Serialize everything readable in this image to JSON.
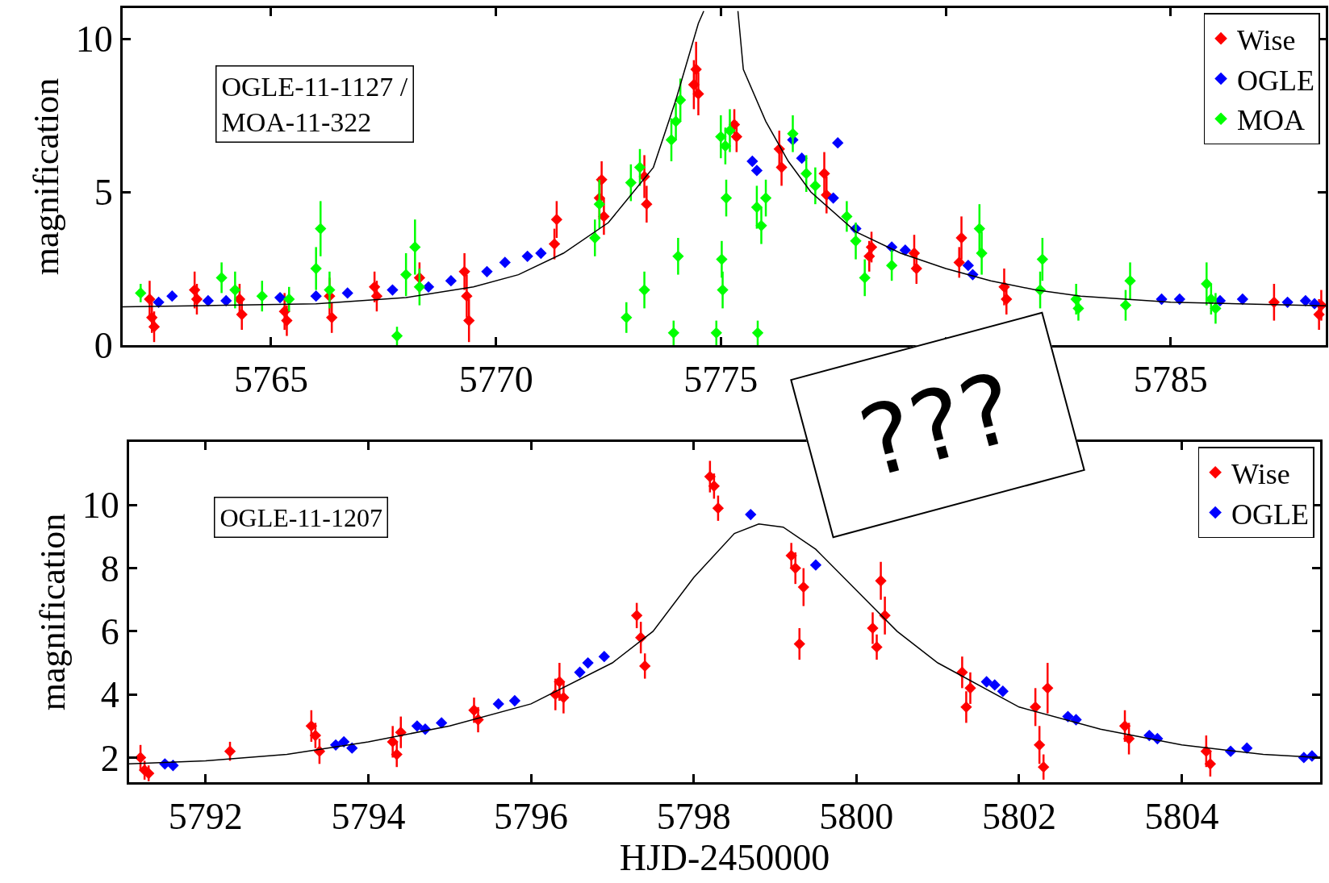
{
  "chart_data": [
    {
      "type": "scatter",
      "ylabel": "magnification",
      "xlim": [
        5761.7,
        5788.45
      ],
      "ylim": [
        0,
        11
      ],
      "xticks": [
        5765,
        5770,
        5775,
        {
          "value": 5780,
          "label": null
        },
        5785
      ],
      "yticks": [
        0,
        5,
        10
      ],
      "marker": "diamond",
      "legend": "top right",
      "grid": false,
      "annotations": [
        "OGLE-11-1127 /\nMOA-11-322",
        "???"
      ],
      "series": [
        {
          "name": "Wise",
          "color": "#ff0000",
          "x": [
            5762.3,
            5762.35,
            5762.4,
            5763.3,
            5763.35,
            5764.3,
            5764.35,
            5765.3,
            5765.35,
            5766.3,
            5766.35,
            5767.3,
            5767.35,
            5768.3,
            5769.3,
            5769.35,
            5769.4,
            5771.3,
            5771.35,
            5772.3,
            5772.35,
            5772.4,
            5773.3,
            5773.35,
            5774.4,
            5774.45,
            5774.5,
            5775.3,
            5775.35,
            5776.3,
            5776.35,
            5777.3,
            5777.35,
            5778.3,
            5778.35,
            5779.3,
            5779.35,
            5780.3,
            5780.35,
            5781.3,
            5781.35,
            5787.3,
            5788.3,
            5788.35
          ],
          "values": [
            1.5,
            0.9,
            0.6,
            1.8,
            1.5,
            1.5,
            1.0,
            1.1,
            0.8,
            1.6,
            0.9,
            1.9,
            1.6,
            2.2,
            2.4,
            1.6,
            0.8,
            3.3,
            4.1,
            4.8,
            5.4,
            4.2,
            5.5,
            4.6,
            8.5,
            9.0,
            8.2,
            7.2,
            6.8,
            6.4,
            5.8,
            5.6,
            4.9,
            2.9,
            3.2,
            3.0,
            2.5,
            2.7,
            3.5,
            1.9,
            1.5,
            1.4,
            1.0,
            1.3
          ],
          "errors": [
            0.6,
            0.5,
            0.5,
            0.6,
            0.5,
            0.5,
            0.5,
            0.6,
            0.5,
            0.6,
            0.5,
            0.5,
            0.5,
            0.5,
            0.6,
            0.7,
            0.7,
            0.5,
            0.6,
            0.7,
            0.6,
            0.6,
            0.7,
            0.6,
            0.8,
            0.9,
            0.7,
            0.5,
            0.5,
            0.6,
            0.6,
            0.7,
            0.6,
            0.5,
            0.5,
            0.6,
            0.5,
            0.5,
            0.7,
            0.6,
            0.5,
            0.6,
            0.5,
            0.5
          ]
        },
        {
          "name": "OGLE",
          "color": "#0000ff",
          "x": [
            5762.5,
            5762.8,
            5763.6,
            5764.0,
            5765.2,
            5766.0,
            5766.7,
            5767.7,
            5768.5,
            5769.0,
            5769.8,
            5770.2,
            5770.7,
            5771.0,
            5775.7,
            5775.8,
            5776.6,
            5776.8,
            5777.6,
            5777.5,
            5778.0,
            5778.8,
            5779.1,
            5780.5,
            5780.6,
            5784.8,
            5785.2,
            5786.1,
            5786.6,
            5787.6,
            5788.0,
            5788.2
          ],
          "values": [
            1.4,
            1.6,
            1.45,
            1.45,
            1.55,
            1.6,
            1.7,
            1.8,
            1.9,
            2.1,
            2.4,
            2.7,
            2.9,
            3.0,
            6.0,
            5.7,
            6.7,
            6.1,
            6.6,
            4.8,
            3.8,
            3.2,
            3.1,
            2.6,
            2.3,
            1.5,
            1.5,
            1.45,
            1.5,
            1.4,
            1.45,
            1.35
          ]
        },
        {
          "name": "MOA",
          "color": "#00ff00",
          "x": [
            5762.1,
            5763.9,
            5764.2,
            5764.8,
            5765.4,
            5766.0,
            5766.1,
            5766.3,
            5767.8,
            5768.0,
            5768.2,
            5768.3,
            5772.2,
            5772.3,
            5773.0,
            5773.2,
            5772.9,
            5773.3,
            5773.9,
            5774.0,
            5774.1,
            5773.95,
            5774.05,
            5775.0,
            5775.1,
            5775.2,
            5775.02,
            5775.04,
            5774.9,
            5775.12,
            5775.8,
            5775.9,
            5775.82,
            5776.0,
            5776.6,
            5776.9,
            5777.1,
            5777.8,
            5778.0,
            5778.2,
            5778.8,
            5780.75,
            5780.8,
            5782.1,
            5782.15,
            5782.9,
            5782.95,
            5784.0,
            5784.1,
            5785.8,
            5785.9,
            5786.0
          ],
          "values": [
            1.7,
            2.2,
            1.8,
            1.6,
            1.5,
            2.5,
            3.8,
            1.8,
            0.3,
            2.3,
            3.2,
            1.9,
            3.5,
            4.6,
            5.3,
            5.8,
            0.9,
            1.8,
            6.7,
            7.3,
            8.0,
            0.4,
            2.9,
            6.8,
            6.5,
            7.0,
            2.8,
            1.8,
            0.4,
            4.8,
            4.5,
            3.9,
            0.4,
            4.8,
            6.9,
            5.6,
            5.2,
            4.2,
            3.4,
            2.2,
            2.6,
            3.8,
            3.0,
            1.8,
            2.8,
            1.5,
            1.2,
            1.3,
            2.1,
            2.0,
            1.5,
            1.2
          ],
          "errors": [
            0.3,
            0.5,
            0.6,
            0.5,
            0.4,
            0.7,
            0.9,
            0.6,
            0.3,
            0.7,
            0.9,
            0.6,
            0.6,
            0.8,
            0.6,
            0.6,
            0.5,
            0.6,
            0.7,
            0.6,
            0.7,
            0.4,
            0.6,
            0.7,
            0.6,
            0.7,
            0.6,
            0.6,
            0.4,
            0.6,
            0.7,
            0.6,
            0.4,
            0.6,
            0.6,
            0.6,
            0.6,
            0.5,
            0.6,
            0.6,
            0.5,
            0.8,
            0.7,
            0.6,
            0.7,
            0.5,
            0.4,
            0.5,
            0.6,
            0.7,
            0.5,
            0.5
          ]
        },
        {
          "type": "line",
          "marker": "none",
          "color": "#000000",
          "x": [
            5761.7,
            5764,
            5766,
            5768,
            5769.5,
            5770.5,
            5771.5,
            5772.5,
            5773.5,
            5774,
            5774.5,
            5774.62,
            5775,
            5775.38,
            5775.5,
            5776,
            5776.5,
            5777,
            5778,
            5779,
            5780,
            5781,
            5782,
            5783,
            5785,
            5788.45
          ],
          "values": [
            1.25,
            1.3,
            1.35,
            1.55,
            1.9,
            2.3,
            3.0,
            4.0,
            5.8,
            8.0,
            10.5,
            10.9,
            null,
            10.9,
            9.0,
            7.3,
            6.0,
            5.0,
            3.7,
            3.0,
            2.5,
            2.1,
            1.8,
            1.6,
            1.4,
            1.28
          ]
        }
      ]
    },
    {
      "type": "scatter",
      "ylabel": "magnification",
      "xlabel": "HJD-2450000",
      "xlim": [
        5791.06,
        5805.7
      ],
      "ylim": [
        1.22,
        12
      ],
      "xticks": [
        5792,
        5794,
        5796,
        5798,
        5800,
        5802,
        5804
      ],
      "yticks": [
        2,
        4,
        6,
        8,
        10
      ],
      "marker": "diamond",
      "legend": "top right",
      "grid": false,
      "annotations": [
        "OGLE-11-1207"
      ],
      "series": [
        {
          "name": "Wise",
          "color": "#ff0000",
          "x": [
            5791.2,
            5791.25,
            5791.3,
            5792.3,
            5793.3,
            5793.35,
            5793.4,
            5794.3,
            5794.35,
            5794.4,
            5795.3,
            5795.35,
            5796.3,
            5796.35,
            5796.4,
            5797.3,
            5797.35,
            5797.4,
            5798.2,
            5798.25,
            5798.3,
            5799.2,
            5799.25,
            5799.3,
            5799.35,
            5800.2,
            5800.25,
            5800.3,
            5800.35,
            5801.3,
            5801.35,
            5801.4,
            5802.2,
            5802.25,
            5802.3,
            5802.35,
            5803.3,
            5803.35,
            5804.3,
            5804.35
          ],
          "values": [
            2.0,
            1.6,
            1.5,
            2.2,
            3.0,
            2.7,
            2.2,
            2.5,
            2.1,
            2.8,
            3.5,
            3.2,
            4.0,
            4.4,
            3.9,
            6.5,
            5.8,
            4.9,
            10.9,
            10.6,
            9.9,
            8.4,
            8.0,
            5.6,
            7.4,
            6.1,
            5.5,
            7.6,
            6.5,
            4.7,
            3.6,
            4.2,
            3.6,
            2.4,
            1.7,
            4.2,
            3.0,
            2.6,
            2.2,
            1.8
          ],
          "errors": [
            0.4,
            0.3,
            0.25,
            0.3,
            0.5,
            0.4,
            0.4,
            0.5,
            0.4,
            0.5,
            0.4,
            0.4,
            0.5,
            0.6,
            0.5,
            0.4,
            0.5,
            0.4,
            0.5,
            0.4,
            0.4,
            0.4,
            0.5,
            0.5,
            0.6,
            0.5,
            0.4,
            0.6,
            0.6,
            0.5,
            0.5,
            0.5,
            0.6,
            0.6,
            0.4,
            0.8,
            0.5,
            0.5,
            0.5,
            0.4
          ]
        },
        {
          "name": "OGLE",
          "color": "#0000ff",
          "x": [
            5791.5,
            5791.6,
            5793.6,
            5793.7,
            5793.8,
            5794.6,
            5794.7,
            5794.9,
            5795.6,
            5795.8,
            5796.6,
            5796.7,
            5796.9,
            5798.7,
            5799.5,
            5801.6,
            5801.7,
            5801.8,
            5802.6,
            5802.7,
            5803.6,
            5803.7,
            5804.6,
            5804.8,
            5805.5,
            5805.6
          ],
          "values": [
            1.8,
            1.75,
            2.4,
            2.5,
            2.3,
            3.0,
            2.9,
            3.1,
            3.7,
            3.8,
            4.7,
            5.0,
            5.2,
            9.7,
            8.1,
            4.4,
            4.3,
            4.1,
            3.3,
            3.2,
            2.7,
            2.6,
            2.2,
            2.3,
            2.0,
            2.05
          ]
        },
        {
          "type": "line",
          "marker": "none",
          "color": "#000000",
          "x": [
            5791.06,
            5792,
            5793,
            5794,
            5795,
            5796,
            5797,
            5797.5,
            5798,
            5798.5,
            5798.8,
            5799.1,
            5799.5,
            5800,
            5800.5,
            5801,
            5802,
            5803,
            5804,
            5805,
            5805.7
          ],
          "values": [
            1.8,
            1.9,
            2.1,
            2.5,
            3.0,
            3.7,
            5.0,
            6.0,
            7.7,
            9.1,
            9.4,
            9.3,
            8.6,
            7.3,
            6.0,
            5.0,
            3.6,
            2.9,
            2.4,
            2.1,
            2.0
          ]
        }
      ]
    }
  ]
}
